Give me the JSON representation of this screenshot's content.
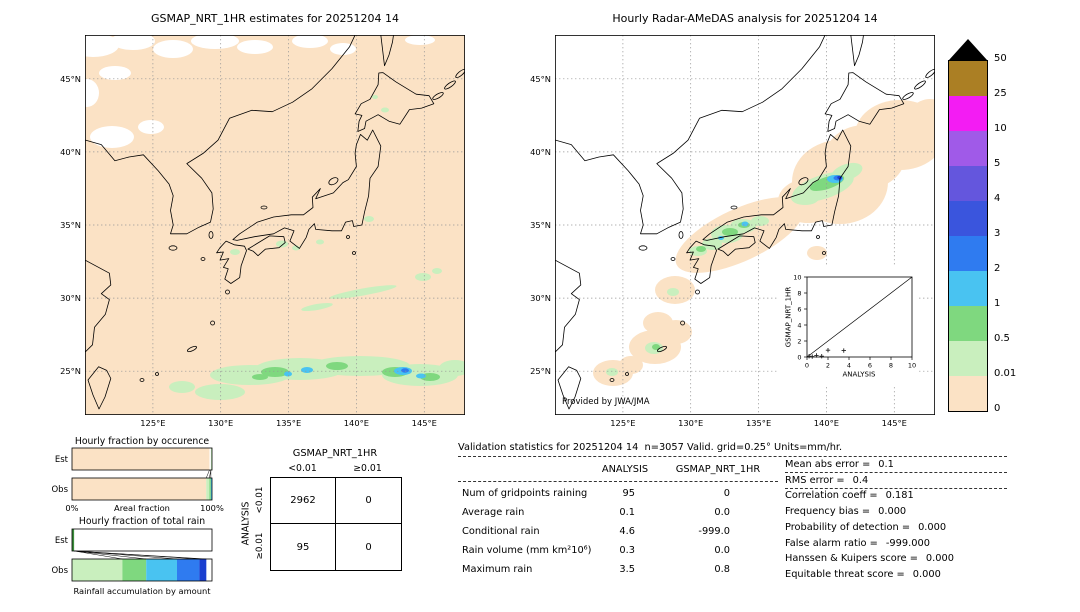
{
  "left_map": {
    "title": "GSMAP_NRT_1HR estimates for 20251204 14",
    "lat_ticks": [
      "45°N",
      "40°N",
      "35°N",
      "30°N",
      "25°N"
    ],
    "lon_ticks": [
      "125°E",
      "130°E",
      "135°E",
      "140°E",
      "145°E"
    ]
  },
  "right_map": {
    "title": "Hourly Radar-AMeDAS analysis for 20251204 14",
    "credit": "Provided by JWA/JMA",
    "lat_ticks": [
      "45°N",
      "40°N",
      "35°N",
      "30°N",
      "25°N"
    ],
    "lon_ticks": [
      "125°E",
      "130°E",
      "135°E",
      "140°E",
      "145°E"
    ],
    "inset": {
      "xlabel": "ANALYSIS",
      "ylabel": "GSMAP_NRT_1HR",
      "ticks": [
        "0",
        "2",
        "4",
        "6",
        "8",
        "10"
      ]
    }
  },
  "colorbar": {
    "labels": [
      "50",
      "25",
      "10",
      "5",
      "4",
      "3",
      "2",
      "1",
      "0.5",
      "0.01",
      "0"
    ],
    "colors": [
      "#ab7f24",
      "#f31cf3",
      "#a05ae8",
      "#6456dd",
      "#3a55dd",
      "#2f7bf0",
      "#49c3f1",
      "#7fd87f",
      "#c9efbe",
      "#fbe2c5"
    ],
    "over_color": "#000000",
    "units": "mm/hr"
  },
  "occurrence_chart": {
    "title": "Hourly fraction by occurence",
    "row_labels": [
      "Est",
      "Obs"
    ],
    "x_min_label": "0%",
    "x_max_label": "100%",
    "x_axis_label": "Areal fraction"
  },
  "totalrain_chart": {
    "title": "Hourly fraction of total rain",
    "row_labels": [
      "Est",
      "Obs"
    ],
    "x_axis_label": "Rainfall accumulation by amount"
  },
  "contingency": {
    "title": "GSMAP_NRT_1HR",
    "col_labels": [
      "<0.01",
      "≥0.01"
    ],
    "row_axis_label": "ANALYSIS",
    "row_labels": [
      "<0.01",
      "≥0.01"
    ],
    "values": [
      [
        "2962",
        "0"
      ],
      [
        "95",
        "0"
      ]
    ]
  },
  "stats": {
    "title": "Validation statistics for 20251204 14  n=3057 Valid. grid=0.25° Units=mm/hr.",
    "col_headers": [
      "ANALYSIS",
      "GSMAP_NRT_1HR"
    ],
    "rows": [
      {
        "label": "Num of gridpoints raining",
        "analysis": "95",
        "gsmap": "0"
      },
      {
        "label": "Average rain",
        "analysis": "0.1",
        "gsmap": "0.0"
      },
      {
        "label": "Conditional rain",
        "analysis": "4.6",
        "gsmap": "-999.0"
      },
      {
        "label": "Rain volume (mm km²10⁶)",
        "analysis": "0.3",
        "gsmap": "0.0"
      },
      {
        "label": "Maximum rain",
        "analysis": "3.5",
        "gsmap": "0.8"
      }
    ],
    "metrics": [
      {
        "label": "Mean abs error =",
        "value": "0.1"
      },
      {
        "label": "RMS error =",
        "value": "0.4"
      },
      {
        "label": "Correlation coeff =",
        "value": "0.181"
      },
      {
        "label": "Frequency bias =",
        "value": "0.000"
      },
      {
        "label": "Probability of detection =",
        "value": "0.000"
      },
      {
        "label": "False alarm ratio =",
        "value": "-999.000"
      },
      {
        "label": "Hanssen & Kuipers score =",
        "value": "0.000"
      },
      {
        "label": "Equitable threat score =",
        "value": "0.000"
      }
    ]
  },
  "chart_data": [
    {
      "type": "heatmap",
      "name": "gsmap_precip_map",
      "title": "GSMAP_NRT_1HR estimates for 20251204 14",
      "units": "mm/hr",
      "lon_range": [
        120,
        148
      ],
      "lat_range": [
        22,
        48
      ],
      "levels": [
        0,
        0.01,
        0.5,
        1,
        2,
        3,
        4,
        5,
        10,
        25,
        50
      ],
      "max_value": 0.8,
      "summary": "Mostly 0 mm/hr background; light rain band near 23-26N across 130-147E with embedded cells up to ~1-3 mm/hr near 145E 25N; scattered drizzle specks 33-36N; white no-data patches north of 44N"
    },
    {
      "type": "heatmap",
      "name": "radar_precip_map",
      "title": "Hourly Radar-AMeDAS analysis for 20251204 14",
      "units": "mm/hr",
      "lon_range": [
        120,
        148
      ],
      "lat_range": [
        22,
        48
      ],
      "levels": [
        0,
        0.01,
        0.5,
        1,
        2,
        3,
        4,
        5,
        10,
        25,
        50
      ],
      "max_value": 3.5,
      "summary": "Rain area over northern Honshu with 2-5 mm/hr core near 140.5E 38N; light rain band along western Japan from Kyushu to Chubu; light cells near Okinawa 26-28N and southwest islands"
    },
    {
      "type": "scatter",
      "name": "inset_scatter",
      "xlabel": "ANALYSIS",
      "ylabel": "GSMAP_NRT_1HR",
      "xlim": [
        0,
        10
      ],
      "ylim": [
        0,
        10
      ],
      "diagonal": true,
      "points": [
        [
          0.2,
          0.1
        ],
        [
          0.5,
          0.05
        ],
        [
          0.9,
          0.2
        ],
        [
          1.4,
          0.1
        ],
        [
          2.0,
          0.85
        ],
        [
          3.5,
          0.8
        ]
      ]
    },
    {
      "type": "bar",
      "name": "occurrence_fractions",
      "title": "Hourly fraction by occurence",
      "xlabel": "Areal fraction",
      "xlim_labels": [
        "0%",
        "100%"
      ],
      "rows": [
        {
          "name": "Est",
          "segments": [
            {
              "color": "#fbe2c5",
              "pct": 98.2
            },
            {
              "color": "#ffffff",
              "pct": 1.0
            },
            {
              "color": "#c9efbe",
              "pct": 0.8
            }
          ]
        },
        {
          "name": "Obs",
          "segments": [
            {
              "color": "#fbe2c5",
              "pct": 95.9
            },
            {
              "color": "#c9efbe",
              "pct": 2.2
            },
            {
              "color": "#7fd87f",
              "pct": 1.1
            },
            {
              "color": "#49c3f1",
              "pct": 0.8
            }
          ]
        }
      ]
    },
    {
      "type": "bar",
      "name": "totalrain_fractions",
      "title": "Hourly fraction of total rain",
      "xlabel": "Rainfall accumulation by amount",
      "rows": [
        {
          "name": "Est",
          "segments": [
            {
              "color": "#3b8f3b",
              "pct": 1.6
            },
            {
              "color": "#ffffff",
              "pct": 98.4
            }
          ]
        },
        {
          "name": "Obs",
          "segments": [
            {
              "color": "#c9efbe",
              "pct": 36
            },
            {
              "color": "#7fd87f",
              "pct": 17
            },
            {
              "color": "#49c3f1",
              "pct": 22
            },
            {
              "color": "#2f7bf0",
              "pct": 16
            },
            {
              "color": "#1a3fd0",
              "pct": 5
            },
            {
              "color": "#ffffff",
              "pct": 4
            }
          ]
        }
      ]
    },
    {
      "type": "table",
      "name": "contingency_table",
      "columns": [
        "<0.01",
        "≥0.01"
      ],
      "rows": [
        "<0.01",
        "≥0.01"
      ],
      "values": [
        [
          2962,
          0
        ],
        [
          95,
          0
        ]
      ]
    }
  ]
}
